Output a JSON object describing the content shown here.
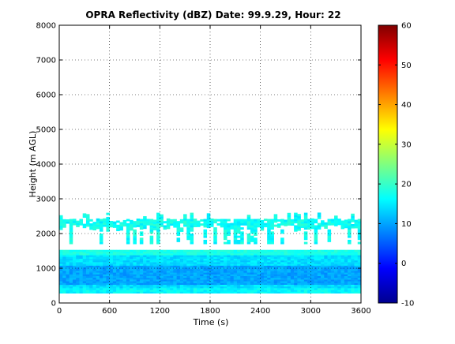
{
  "chart_data": {
    "type": "heatmap",
    "title": "OPRA Reflectivity (dBZ)  Date: 99.9.29, Hour: 22",
    "xlabel": "Time (s)",
    "ylabel": "Height (m AGL)",
    "xlim": [
      0,
      3600
    ],
    "ylim": [
      0,
      8000
    ],
    "xticks": [
      "0",
      "600",
      "1200",
      "1800",
      "2400",
      "3000",
      "3600"
    ],
    "yticks": [
      "0",
      "1000",
      "2000",
      "3000",
      "4000",
      "5000",
      "6000",
      "7000",
      "8000"
    ],
    "grid": true,
    "colorbar": {
      "colormap": "jet",
      "clim": [
        -10,
        60
      ],
      "ticks": [
        "-10",
        "0",
        "10",
        "20",
        "30",
        "40",
        "50",
        "60"
      ]
    },
    "layers": [
      {
        "name": "upper cloud layer",
        "height_range_m": [
          1700,
          2550
        ],
        "time_range_s": [
          0,
          3600
        ],
        "typical_dBZ": 17
      },
      {
        "name": "lower cloud layer",
        "height_range_m": [
          280,
          1500
        ],
        "time_range_s": [
          0,
          3600
        ],
        "typical_dBZ": 14
      },
      {
        "name": "lower layer core",
        "height_range_m": [
          500,
          1050
        ],
        "time_range_s": [
          0,
          3600
        ],
        "typical_dBZ": 10
      }
    ]
  }
}
